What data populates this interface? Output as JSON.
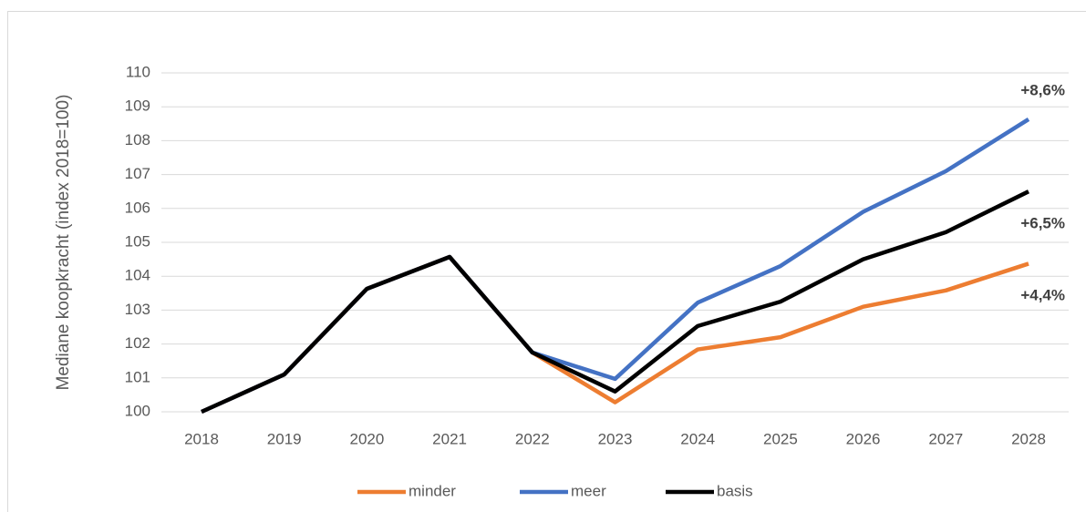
{
  "chart_data": {
    "type": "line",
    "y_label": "Mediane koopkracht (index 2018=100)",
    "categories": [
      "2018",
      "2019",
      "2020",
      "2021",
      "2022",
      "2023",
      "2024",
      "2025",
      "2026",
      "2027",
      "2028"
    ],
    "series": [
      {
        "name": "minder",
        "color": "#ED7D31",
        "values": [
          100,
          101.1,
          103.63,
          104.57,
          101.75,
          100.28,
          101.84,
          102.2,
          103.1,
          103.58,
          104.37
        ]
      },
      {
        "name": "meer",
        "color": "#4472C4",
        "values": [
          100,
          101.1,
          103.63,
          104.57,
          101.75,
          100.97,
          103.22,
          104.3,
          105.9,
          107.1,
          108.63
        ]
      },
      {
        "name": "basis",
        "color": "#000000",
        "values": [
          100,
          101.1,
          103.63,
          104.57,
          101.75,
          100.6,
          102.53,
          103.25,
          104.5,
          105.3,
          106.5
        ]
      }
    ],
    "annotations": [
      "+8,6%",
      "+6,5%",
      "+4,4%"
    ],
    "ylim": [
      100,
      110
    ],
    "yticks": [
      100,
      101,
      102,
      103,
      104,
      105,
      106,
      107,
      108,
      109,
      110
    ],
    "grid": true,
    "legend": "bottom"
  }
}
